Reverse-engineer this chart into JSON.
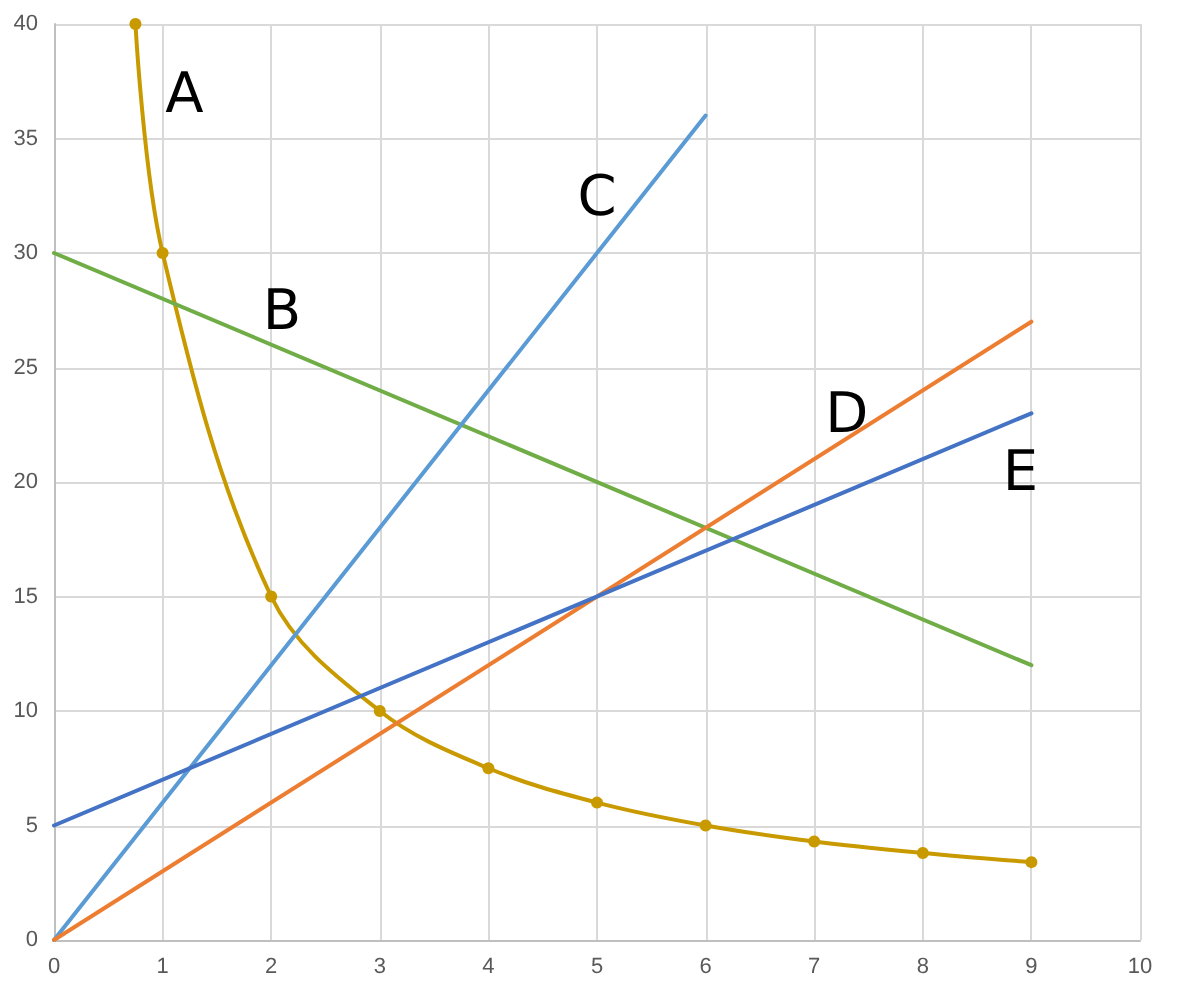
{
  "chart_data": {
    "type": "line",
    "series": [
      {
        "name": "A",
        "color": "#c89a00",
        "x": [
          0.75,
          1,
          2,
          3,
          4,
          5,
          6,
          7,
          8,
          9
        ],
        "values": [
          40,
          30,
          15,
          10,
          7.5,
          6,
          5,
          4.3,
          3.8,
          3.4
        ],
        "marker": "circle"
      },
      {
        "name": "B",
        "color": "#70ad47",
        "x": [
          0,
          9
        ],
        "values": [
          30,
          12
        ]
      },
      {
        "name": "C",
        "color": "#5b9bd5",
        "x": [
          0,
          6
        ],
        "values": [
          0,
          36
        ]
      },
      {
        "name": "D",
        "color": "#ed7d31",
        "x": [
          0,
          9
        ],
        "values": [
          0,
          27
        ]
      },
      {
        "name": "E",
        "color": "#4472c4",
        "x": [
          0,
          9
        ],
        "values": [
          5,
          23
        ]
      }
    ],
    "xlim": [
      0,
      10
    ],
    "xticks": [
      0,
      1,
      2,
      3,
      4,
      5,
      6,
      7,
      8,
      9,
      10
    ],
    "ylim": [
      0,
      40
    ],
    "yticks": [
      0,
      5,
      10,
      15,
      20,
      25,
      30,
      35,
      40
    ],
    "grid": true,
    "marker": "none",
    "line_style": "solid"
  }
}
